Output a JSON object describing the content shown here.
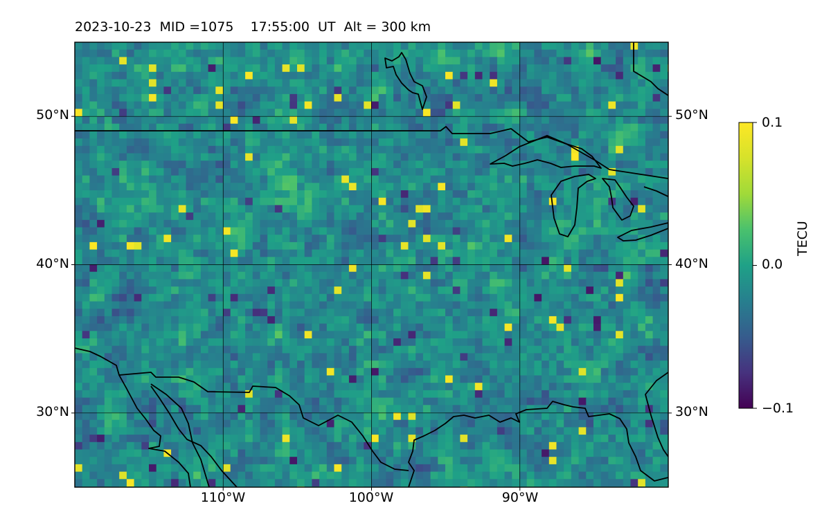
{
  "title": "2023-10-23  MID =1075    17:55:00  UT  Alt = 300 km",
  "map": {
    "extent": {
      "lon_min": -120,
      "lon_max": -80,
      "lat_min": 25,
      "lat_max": 55
    },
    "lat_ticks": [
      {
        "value": 30,
        "label": "30°N"
      },
      {
        "value": 40,
        "label": "40°N"
      },
      {
        "value": 50,
        "label": "50°N"
      }
    ],
    "lon_ticks": [
      {
        "value": -110,
        "label": "110°W"
      },
      {
        "value": -100,
        "label": "100°W"
      },
      {
        "value": -90,
        "label": "90°W"
      }
    ],
    "gridlines": true,
    "field": "TEC anomaly, gridded ~0.5° cells, values mostly in [-0.05, 0.05] TECU with scattered +0.1 and -0.1 cells",
    "colormap": "viridis",
    "coastline_color": "#000000"
  },
  "colorbar": {
    "label": "TECU",
    "min": -0.1,
    "max": 0.1,
    "ticks": [
      {
        "value": 0.1,
        "label": "0.1"
      },
      {
        "value": 0.0,
        "label": "0.0"
      },
      {
        "value": -0.1,
        "label": "−0.1"
      }
    ]
  }
}
